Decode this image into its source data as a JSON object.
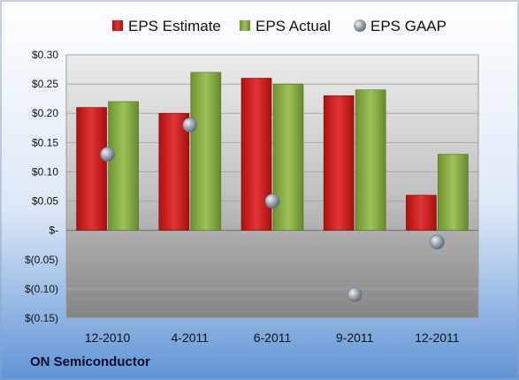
{
  "company": "ON Semiconductor",
  "colors": {
    "estimate": "#cc2222",
    "actual": "#8fb34a",
    "gaap": "#9aa4ae",
    "plot_background_top": "#e6e6e6",
    "plot_background_bottom": "#8a8a8a",
    "page_background_top": "#ffffff",
    "page_background_bottom": "#5f94d6"
  },
  "chart_data": {
    "type": "bar",
    "title": "",
    "xlabel": "",
    "ylabel": "",
    "categories": [
      "12-2010",
      "4-2011",
      "6-2011",
      "9-2011",
      "12-2011"
    ],
    "series": [
      {
        "name": "EPS Estimate",
        "type": "bar",
        "values": [
          0.21,
          0.2,
          0.26,
          0.23,
          0.06
        ]
      },
      {
        "name": "EPS Actual",
        "type": "bar",
        "values": [
          0.22,
          0.27,
          0.25,
          0.24,
          0.13
        ]
      },
      {
        "name": "EPS GAAP",
        "type": "scatter",
        "values": [
          0.13,
          0.18,
          0.05,
          -0.11,
          -0.02
        ]
      }
    ],
    "ylim": [
      -0.15,
      0.3
    ],
    "yticks": [
      0.3,
      0.25,
      0.2,
      0.15,
      0.1,
      0.05,
      0,
      -0.05,
      -0.1,
      -0.15
    ],
    "ytick_labels": [
      "$0.30",
      "$0.25",
      "$0.20",
      "$0.15",
      "$0.10",
      "$0.05",
      "$-",
      "$(0.05)",
      "$(0.10)",
      "$(0.15)"
    ],
    "grid": true,
    "legend_position": "top"
  }
}
